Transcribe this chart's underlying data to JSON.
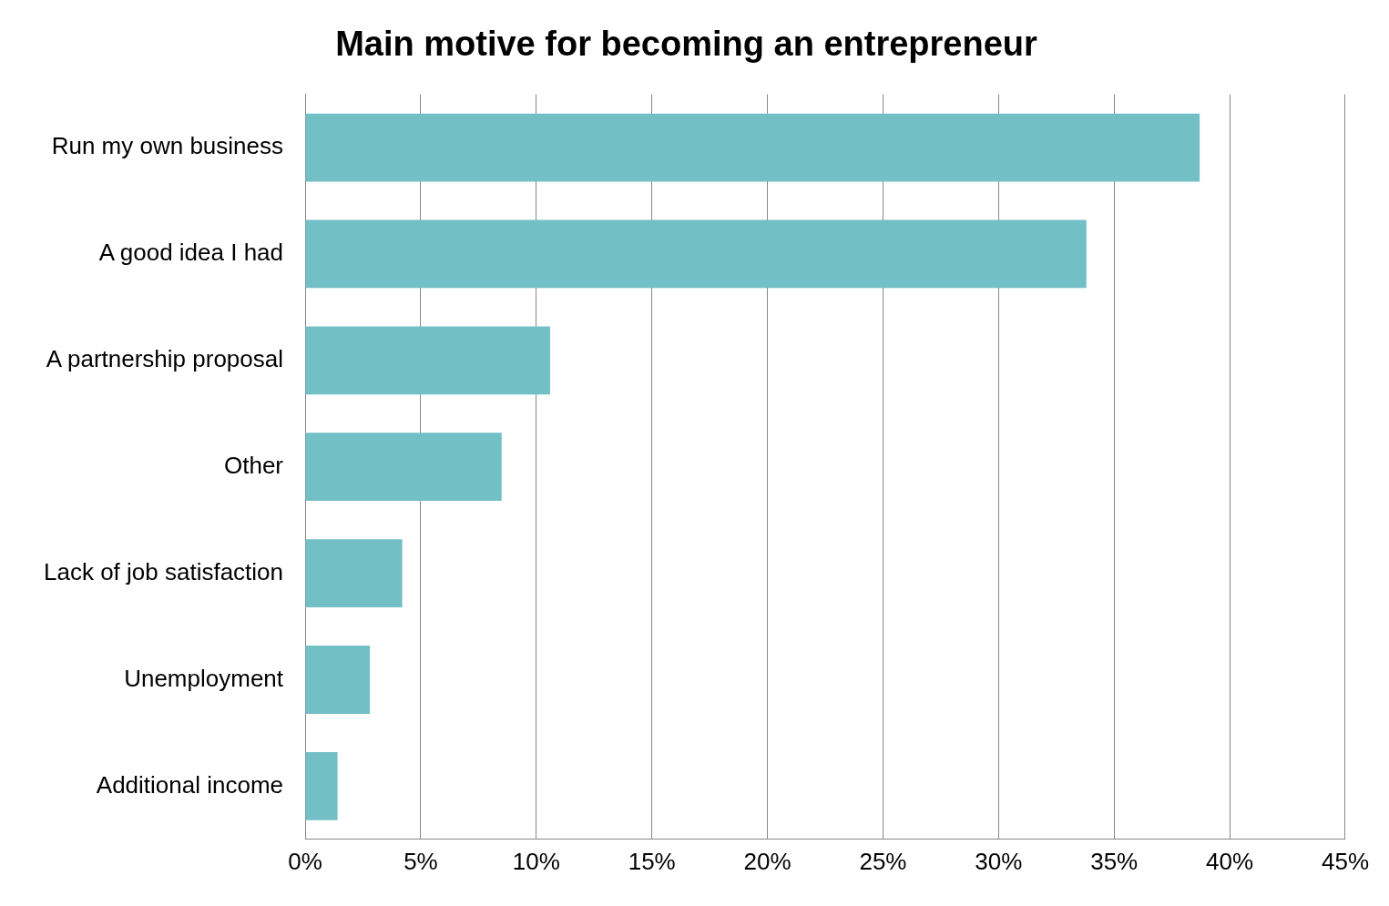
{
  "chart_data": {
    "type": "bar",
    "orientation": "horizontal",
    "title": "Main motive for becoming an entrepreneur",
    "categories": [
      "Run my own business",
      "A good idea I had",
      "A partnership proposal",
      "Other",
      "Lack of job satisfaction",
      "Unemployment",
      "Additional income"
    ],
    "values": [
      38.7,
      33.8,
      10.6,
      8.5,
      4.2,
      2.8,
      1.4
    ],
    "color": "#72bfc5",
    "xlim": [
      0,
      45
    ],
    "xticks": [
      {
        "value": 0,
        "label": "0%"
      },
      {
        "value": 5,
        "label": "5%"
      },
      {
        "value": 10,
        "label": "10%"
      },
      {
        "value": 15,
        "label": "15%"
      },
      {
        "value": 20,
        "label": "20%"
      },
      {
        "value": 25,
        "label": "25%"
      },
      {
        "value": 30,
        "label": "30%"
      },
      {
        "value": 35,
        "label": "35%"
      },
      {
        "value": 40,
        "label": "40%"
      },
      {
        "value": 45,
        "label": "45%"
      }
    ],
    "grid": "x"
  }
}
